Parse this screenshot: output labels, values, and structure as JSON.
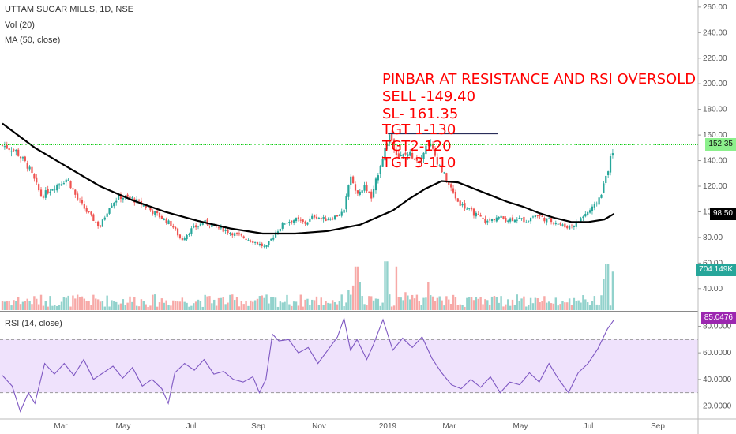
{
  "header": {
    "symbol_line": "UTTAM SUGAR MILLS, 1D, NSE",
    "volume_line": "Vol (20)",
    "ma_line": "MA (50, close)",
    "rsi_line": "RSI (14, close)"
  },
  "annotation": {
    "lines": [
      "PINBAR AT RESISTANCE AND RSI OVERSOLD",
      "SELL -149.40",
      "SL- 161.35",
      "TGT 1-130",
      "TGT2-120",
      "TGT 3-110"
    ],
    "color": "#ff0000"
  },
  "badges": {
    "last_price": "152.35",
    "ma_value": "98.50",
    "volume_value": "704.149K",
    "rsi_value": "85.0476"
  },
  "colors": {
    "up": "#26a69a",
    "down": "#ef5350",
    "ma": "#000000",
    "rsi": "#7e57c2",
    "rsi_band": "#e9d8fb",
    "resistance": "#2a2e5a",
    "price_line": "#00c805"
  },
  "chart_data": {
    "type": "candlestick",
    "title": "UTTAM SUGAR MILLS, 1D, NSE",
    "x_labels": [
      "Mar",
      "May",
      "Jul",
      "Sep",
      "Nov",
      "2019",
      "Mar",
      "May",
      "Jul",
      "Sep"
    ],
    "price_axis": {
      "ticks": [
        40,
        60,
        80,
        100,
        120,
        140,
        160,
        180,
        200,
        220,
        240,
        260
      ],
      "tick_labels": [
        "40.00",
        "60.00",
        "80.00",
        "100.00",
        "120.00",
        "140.00",
        "160.00",
        "180.00",
        "200.00",
        "220.00",
        "240.00",
        "260.00"
      ],
      "range": [
        30,
        265
      ]
    },
    "rsi_axis": {
      "ticks": [
        20,
        40,
        60,
        80
      ],
      "tick_labels": [
        "20.0000",
        "40.0000",
        "60.0000",
        "80.0000"
      ],
      "range": [
        12,
        88
      ],
      "band": [
        30,
        70
      ]
    },
    "close_path": [
      {
        "m": 0.0,
        "close": 152
      },
      {
        "m": 0.4,
        "close": 148
      },
      {
        "m": 0.8,
        "close": 135
      },
      {
        "m": 1.2,
        "close": 112
      },
      {
        "m": 1.6,
        "close": 120
      },
      {
        "m": 2.0,
        "close": 126
      },
      {
        "m": 2.3,
        "close": 110
      },
      {
        "m": 2.6,
        "close": 100
      },
      {
        "m": 3.0,
        "close": 88
      },
      {
        "m": 3.3,
        "close": 105
      },
      {
        "m": 3.6,
        "close": 112
      },
      {
        "m": 4.0,
        "close": 110
      },
      {
        "m": 4.4,
        "close": 104
      },
      {
        "m": 4.8,
        "close": 97
      },
      {
        "m": 5.2,
        "close": 90
      },
      {
        "m": 5.5,
        "close": 78
      },
      {
        "m": 5.8,
        "close": 86
      },
      {
        "m": 6.2,
        "close": 92
      },
      {
        "m": 6.6,
        "close": 88
      },
      {
        "m": 7.0,
        "close": 84
      },
      {
        "m": 7.4,
        "close": 80
      },
      {
        "m": 7.8,
        "close": 76
      },
      {
        "m": 8.1,
        "close": 72
      },
      {
        "m": 8.4,
        "close": 84
      },
      {
        "m": 8.7,
        "close": 92
      },
      {
        "m": 9.0,
        "close": 94
      },
      {
        "m": 9.3,
        "close": 91
      },
      {
        "m": 9.6,
        "close": 97
      },
      {
        "m": 9.9,
        "close": 94
      },
      {
        "m": 10.2,
        "close": 96
      },
      {
        "m": 10.5,
        "close": 100
      },
      {
        "m": 10.7,
        "close": 130
      },
      {
        "m": 10.9,
        "close": 112
      },
      {
        "m": 11.15,
        "close": 120
      },
      {
        "m": 11.35,
        "close": 110
      },
      {
        "m": 11.6,
        "close": 136
      },
      {
        "m": 11.9,
        "close": 160
      },
      {
        "m": 12.2,
        "close": 142
      },
      {
        "m": 12.5,
        "close": 146
      },
      {
        "m": 12.8,
        "close": 140
      },
      {
        "m": 13.1,
        "close": 155
      },
      {
        "m": 13.4,
        "close": 138
      },
      {
        "m": 13.7,
        "close": 122
      },
      {
        "m": 14.0,
        "close": 108
      },
      {
        "m": 14.3,
        "close": 102
      },
      {
        "m": 14.6,
        "close": 97
      },
      {
        "m": 14.9,
        "close": 92
      },
      {
        "m": 15.2,
        "close": 96
      },
      {
        "m": 15.5,
        "close": 94
      },
      {
        "m": 15.8,
        "close": 95
      },
      {
        "m": 16.1,
        "close": 93
      },
      {
        "m": 16.4,
        "close": 98
      },
      {
        "m": 16.7,
        "close": 94
      },
      {
        "m": 17.0,
        "close": 92
      },
      {
        "m": 17.3,
        "close": 88
      },
      {
        "m": 17.6,
        "close": 90
      },
      {
        "m": 17.9,
        "close": 98
      },
      {
        "m": 18.2,
        "close": 104
      },
      {
        "m": 18.4,
        "close": 114
      },
      {
        "m": 18.6,
        "close": 132
      },
      {
        "m": 18.8,
        "close": 152
      }
    ],
    "ma50": [
      {
        "m": 0.0,
        "v": 169
      },
      {
        "m": 1.0,
        "v": 150
      },
      {
        "m": 2.0,
        "v": 135
      },
      {
        "m": 3.0,
        "v": 120
      },
      {
        "m": 4.0,
        "v": 109
      },
      {
        "m": 5.0,
        "v": 100
      },
      {
        "m": 6.0,
        "v": 93
      },
      {
        "m": 7.0,
        "v": 87
      },
      {
        "m": 8.0,
        "v": 83
      },
      {
        "m": 9.0,
        "v": 83
      },
      {
        "m": 10.0,
        "v": 85
      },
      {
        "m": 11.0,
        "v": 90
      },
      {
        "m": 12.0,
        "v": 101
      },
      {
        "m": 12.5,
        "v": 110
      },
      {
        "m": 13.0,
        "v": 118
      },
      {
        "m": 13.5,
        "v": 124
      },
      {
        "m": 14.0,
        "v": 123
      },
      {
        "m": 14.5,
        "v": 118
      },
      {
        "m": 15.0,
        "v": 113
      },
      {
        "m": 15.5,
        "v": 108
      },
      {
        "m": 16.0,
        "v": 104
      },
      {
        "m": 16.5,
        "v": 99
      },
      {
        "m": 17.0,
        "v": 95
      },
      {
        "m": 17.5,
        "v": 92
      },
      {
        "m": 18.0,
        "v": 92
      },
      {
        "m": 18.5,
        "v": 94
      },
      {
        "m": 18.8,
        "v": 98.5
      }
    ],
    "rsi": [
      {
        "m": 0.0,
        "v": 43
      },
      {
        "m": 0.3,
        "v": 35
      },
      {
        "m": 0.55,
        "v": 16
      },
      {
        "m": 0.8,
        "v": 30
      },
      {
        "m": 1.0,
        "v": 22
      },
      {
        "m": 1.3,
        "v": 52
      },
      {
        "m": 1.6,
        "v": 44
      },
      {
        "m": 1.9,
        "v": 52
      },
      {
        "m": 2.2,
        "v": 43
      },
      {
        "m": 2.5,
        "v": 55
      },
      {
        "m": 2.8,
        "v": 40
      },
      {
        "m": 3.1,
        "v": 45
      },
      {
        "m": 3.4,
        "v": 50
      },
      {
        "m": 3.7,
        "v": 41
      },
      {
        "m": 4.0,
        "v": 49
      },
      {
        "m": 4.3,
        "v": 35
      },
      {
        "m": 4.6,
        "v": 40
      },
      {
        "m": 4.9,
        "v": 33
      },
      {
        "m": 5.1,
        "v": 22
      },
      {
        "m": 5.3,
        "v": 45
      },
      {
        "m": 5.6,
        "v": 52
      },
      {
        "m": 5.9,
        "v": 47
      },
      {
        "m": 6.2,
        "v": 55
      },
      {
        "m": 6.5,
        "v": 44
      },
      {
        "m": 6.8,
        "v": 46
      },
      {
        "m": 7.1,
        "v": 40
      },
      {
        "m": 7.4,
        "v": 38
      },
      {
        "m": 7.7,
        "v": 42
      },
      {
        "m": 7.9,
        "v": 30
      },
      {
        "m": 8.1,
        "v": 40
      },
      {
        "m": 8.3,
        "v": 74
      },
      {
        "m": 8.5,
        "v": 69
      },
      {
        "m": 8.8,
        "v": 70
      },
      {
        "m": 9.1,
        "v": 60
      },
      {
        "m": 9.4,
        "v": 64
      },
      {
        "m": 9.7,
        "v": 52
      },
      {
        "m": 10.0,
        "v": 62
      },
      {
        "m": 10.3,
        "v": 72
      },
      {
        "m": 10.5,
        "v": 86
      },
      {
        "m": 10.7,
        "v": 62
      },
      {
        "m": 10.9,
        "v": 70
      },
      {
        "m": 11.2,
        "v": 55
      },
      {
        "m": 11.4,
        "v": 66
      },
      {
        "m": 11.7,
        "v": 85
      },
      {
        "m": 12.0,
        "v": 62
      },
      {
        "m": 12.3,
        "v": 71
      },
      {
        "m": 12.6,
        "v": 64
      },
      {
        "m": 12.9,
        "v": 72
      },
      {
        "m": 13.2,
        "v": 56
      },
      {
        "m": 13.5,
        "v": 45
      },
      {
        "m": 13.8,
        "v": 36
      },
      {
        "m": 14.1,
        "v": 33
      },
      {
        "m": 14.4,
        "v": 40
      },
      {
        "m": 14.7,
        "v": 34
      },
      {
        "m": 15.0,
        "v": 42
      },
      {
        "m": 15.3,
        "v": 30
      },
      {
        "m": 15.6,
        "v": 38
      },
      {
        "m": 15.9,
        "v": 36
      },
      {
        "m": 16.2,
        "v": 45
      },
      {
        "m": 16.5,
        "v": 38
      },
      {
        "m": 16.8,
        "v": 52
      },
      {
        "m": 17.1,
        "v": 40
      },
      {
        "m": 17.4,
        "v": 30
      },
      {
        "m": 17.7,
        "v": 45
      },
      {
        "m": 18.0,
        "v": 52
      },
      {
        "m": 18.3,
        "v": 63
      },
      {
        "m": 18.6,
        "v": 78
      },
      {
        "m": 18.8,
        "v": 85
      }
    ],
    "volume_spikes": [
      {
        "m": 10.9,
        "v": 0.85
      },
      {
        "m": 11.8,
        "v": 0.95
      },
      {
        "m": 12.1,
        "v": 0.85
      },
      {
        "m": 12.4,
        "v": 0.35
      },
      {
        "m": 13.1,
        "v": 0.55
      },
      {
        "m": 18.6,
        "v": 0.9
      },
      {
        "m": 18.75,
        "v": 0.75
      },
      {
        "m": 18.5,
        "v": 0.6
      }
    ],
    "resistance_level": 161,
    "last_price_level": 152.35,
    "ma_last": 98.5,
    "rsi_last": 85.0476
  }
}
